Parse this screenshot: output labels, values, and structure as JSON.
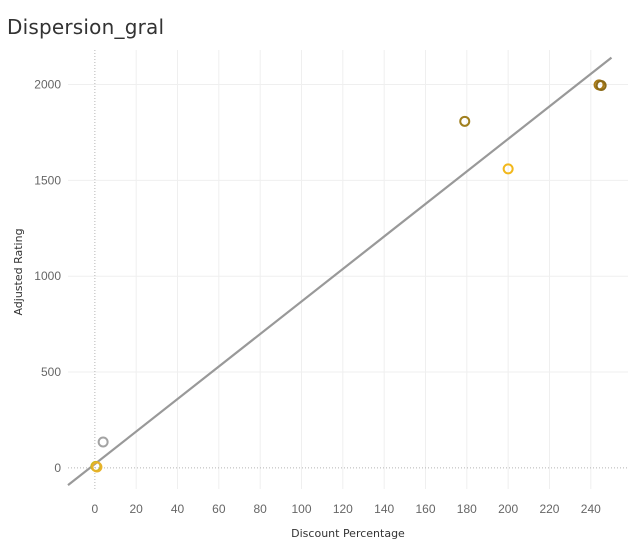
{
  "chart_data": {
    "type": "scatter",
    "title": "Dispersion_gral",
    "xlabel": "Discount Percentage",
    "ylabel": "Adjusted Rating",
    "xlim": [
      -13,
      258
    ],
    "ylim": [
      -110,
      2180
    ],
    "xticks": [
      0,
      20,
      40,
      60,
      80,
      100,
      120,
      140,
      160,
      180,
      200,
      220,
      240
    ],
    "yticks": [
      0,
      500,
      1000,
      1500,
      2000
    ],
    "grid": true,
    "points": [
      {
        "x": 0.5,
        "y": 8,
        "color": "#c9b81e"
      },
      {
        "x": 1,
        "y": 5,
        "color": "#e8b22a"
      },
      {
        "x": 4,
        "y": 135,
        "color": "#a3a3a3"
      },
      {
        "x": 179,
        "y": 1808,
        "color": "#a07f1e"
      },
      {
        "x": 200,
        "y": 1560,
        "color": "#f2b81c"
      },
      {
        "x": 244,
        "y": 1998,
        "color": "#a97a16"
      },
      {
        "x": 245,
        "y": 1995,
        "color": "#8b6a18"
      }
    ],
    "trend_line": {
      "from": [
        -13,
        -90
      ],
      "to": [
        250,
        2140
      ],
      "color": "#999999"
    }
  }
}
